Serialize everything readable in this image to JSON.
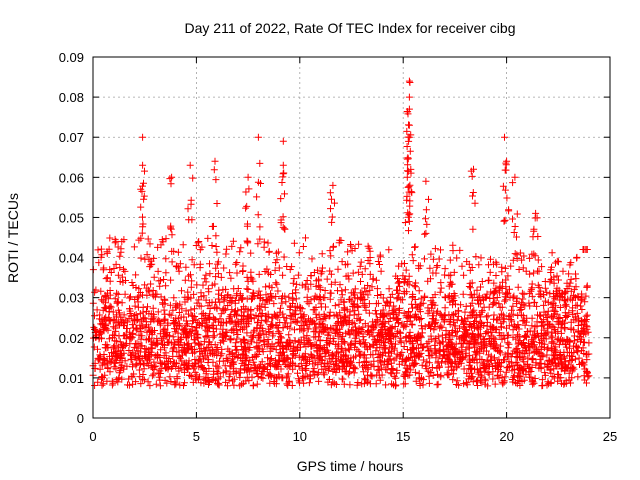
{
  "chart_data": {
    "type": "scatter",
    "title": "Day 211 of 2022, Rate Of TEC Index for receiver cibg",
    "xlabel": "GPS time / hours",
    "ylabel": "ROTI / TECUs",
    "xlim": [
      0,
      25
    ],
    "ylim": [
      0,
      0.09
    ],
    "x_ticks": [
      0,
      5,
      10,
      15,
      20,
      25
    ],
    "x_tick_labels": [
      "0",
      "5",
      "10",
      "15",
      "20",
      "25"
    ],
    "y_ticks": [
      0,
      0.01,
      0.02,
      0.03,
      0.04,
      0.05,
      0.06,
      0.07,
      0.08,
      0.09
    ],
    "y_tick_labels": [
      "0",
      "0.01",
      "0.02",
      "0.03",
      "0.04",
      "0.05",
      "0.06",
      "0.07",
      "0.08",
      "0.09"
    ],
    "grid": true,
    "marker": "+",
    "color": "#ff0000",
    "series": [
      {
        "name": "ROTI",
        "x_range": [
          0,
          24
        ],
        "baseline_band": [
          0.008,
          0.03
        ],
        "typical_max": 0.045,
        "peaks": [
          {
            "x": 2.4,
            "y": 0.07
          },
          {
            "x": 2.4,
            "y": 0.063
          },
          {
            "x": 3.8,
            "y": 0.06
          },
          {
            "x": 4.7,
            "y": 0.063
          },
          {
            "x": 5.9,
            "y": 0.064
          },
          {
            "x": 7.5,
            "y": 0.06
          },
          {
            "x": 8.0,
            "y": 0.07
          },
          {
            "x": 9.2,
            "y": 0.069
          },
          {
            "x": 9.2,
            "y": 0.063
          },
          {
            "x": 11.6,
            "y": 0.058
          },
          {
            "x": 15.3,
            "y": 0.084
          },
          {
            "x": 15.3,
            "y": 0.08
          },
          {
            "x": 15.3,
            "y": 0.077
          },
          {
            "x": 15.3,
            "y": 0.073
          },
          {
            "x": 15.3,
            "y": 0.07
          },
          {
            "x": 15.2,
            "y": 0.06
          },
          {
            "x": 16.1,
            "y": 0.059
          },
          {
            "x": 18.4,
            "y": 0.062
          },
          {
            "x": 19.9,
            "y": 0.07
          },
          {
            "x": 20.0,
            "y": 0.064
          },
          {
            "x": 20.4,
            "y": 0.06
          },
          {
            "x": 21.4,
            "y": 0.051
          },
          {
            "x": 23.8,
            "y": 0.042
          }
        ]
      }
    ]
  }
}
